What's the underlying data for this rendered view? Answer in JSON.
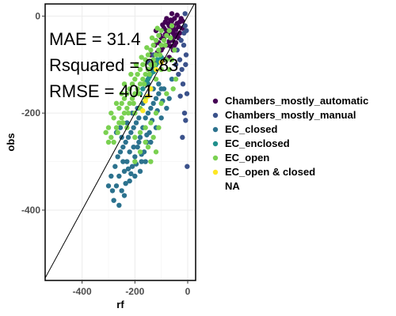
{
  "chart_data": {
    "type": "scatter",
    "title": "",
    "xlabel": "rf",
    "ylabel": "obs",
    "xlim": [
      -540,
      30
    ],
    "ylim": [
      -545,
      25
    ],
    "x_ticks": [
      -400,
      -200,
      0
    ],
    "y_ticks": [
      0,
      -200,
      -400
    ],
    "grid": true,
    "reference_line": "y = x",
    "legend_position": "right",
    "annotations": [
      "MAE = 31.4",
      "Rsquared = 0.83",
      "RMSE = 40.1"
    ],
    "legend": [
      {
        "label": "Chambers_mostly_automatic",
        "color": "#440154"
      },
      {
        "label": "Chambers_mostly_manual",
        "color": "#3B528B"
      },
      {
        "label": "EC_closed",
        "color": "#2C728E"
      },
      {
        "label": "EC_enclosed",
        "color": "#21908C"
      },
      {
        "label": "EC_open",
        "color": "#7AD151"
      },
      {
        "label": "EC_open & closed",
        "color": "#FDE725"
      },
      {
        "label": "NA",
        "color": ""
      }
    ],
    "series": [
      {
        "name": "Chambers_mostly_automatic",
        "color": "#440154",
        "points": [
          [
            -60,
            -10
          ],
          [
            -70,
            -20
          ],
          [
            -50,
            -5
          ],
          [
            -80,
            -30
          ],
          [
            -40,
            -15
          ],
          [
            -90,
            -25
          ],
          [
            -55,
            -35
          ],
          [
            -65,
            -8
          ],
          [
            -75,
            -40
          ],
          [
            -45,
            -28
          ],
          [
            -85,
            -12
          ],
          [
            -100,
            -45
          ],
          [
            -35,
            -22
          ],
          [
            -95,
            -18
          ],
          [
            -60,
            -50
          ],
          [
            -70,
            -32
          ],
          [
            -50,
            -42
          ],
          [
            -110,
            -55
          ],
          [
            -30,
            -12
          ],
          [
            -80,
            -60
          ],
          [
            -120,
            -30
          ],
          [
            -65,
            -62
          ],
          [
            -140,
            -80
          ],
          [
            -40,
            -38
          ],
          [
            -55,
            -20
          ],
          [
            -90,
            -48
          ],
          [
            -25,
            -5
          ],
          [
            -75,
            -15
          ],
          [
            -100,
            -70
          ],
          [
            -45,
            -55
          ],
          [
            -130,
            -95
          ],
          [
            -20,
            -25
          ],
          [
            -85,
            -38
          ],
          [
            -60,
            -28
          ],
          [
            -70,
            -52
          ],
          [
            -35,
            -45
          ],
          [
            -150,
            -110
          ],
          [
            -60,
            5
          ],
          [
            -80,
            -5
          ],
          [
            -50,
            -60
          ],
          [
            -115,
            -75
          ],
          [
            -95,
            -65
          ],
          [
            -40,
            2
          ],
          [
            -105,
            -40
          ],
          [
            -125,
            -60
          ],
          [
            -30,
            -35
          ],
          [
            -55,
            -70
          ],
          [
            -70,
            -85
          ],
          [
            -20,
            -10
          ],
          [
            -88,
            -90
          ]
        ]
      },
      {
        "name": "Chambers_mostly_manual",
        "color": "#3B528B",
        "points": [
          [
            -10,
            5
          ],
          [
            -5,
            -30
          ],
          [
            -15,
            -60
          ],
          [
            -8,
            -100
          ],
          [
            -3,
            -160
          ],
          [
            -20,
            -250
          ],
          [
            -12,
            -200
          ],
          [
            -30,
            -90
          ],
          [
            -25,
            -50
          ],
          [
            -18,
            -140
          ],
          [
            -6,
            -80
          ],
          [
            -40,
            -70
          ],
          [
            -35,
            -120
          ],
          [
            -10,
            -20
          ],
          [
            -22,
            -110
          ],
          [
            -130,
            -80
          ],
          [
            -150,
            -95
          ],
          [
            -45,
            -100
          ],
          [
            -28,
            -165
          ],
          [
            -14,
            -35
          ],
          [
            -8,
            -215
          ],
          [
            -2,
            -310
          ]
        ]
      },
      {
        "name": "EC_closed",
        "color": "#2C728E",
        "points": [
          [
            -280,
            -380
          ],
          [
            -270,
            -350
          ],
          [
            -260,
            -330
          ],
          [
            -250,
            -360
          ],
          [
            -240,
            -320
          ],
          [
            -230,
            -300
          ],
          [
            -220,
            -340
          ],
          [
            -210,
            -310
          ],
          [
            -200,
            -290
          ],
          [
            -190,
            -270
          ],
          [
            -180,
            -250
          ],
          [
            -170,
            -230
          ],
          [
            -160,
            -210
          ],
          [
            -150,
            -200
          ],
          [
            -140,
            -190
          ],
          [
            -130,
            -180
          ],
          [
            -120,
            -170
          ],
          [
            -110,
            -160
          ],
          [
            -100,
            -150
          ],
          [
            -290,
            -330
          ],
          [
            -275,
            -310
          ],
          [
            -265,
            -290
          ],
          [
            -255,
            -280
          ],
          [
            -245,
            -270
          ],
          [
            -235,
            -260
          ],
          [
            -225,
            -250
          ],
          [
            -215,
            -240
          ],
          [
            -205,
            -230
          ],
          [
            -195,
            -220
          ],
          [
            -185,
            -210
          ],
          [
            -175,
            -300
          ],
          [
            -165,
            -280
          ],
          [
            -155,
            -260
          ],
          [
            -145,
            -240
          ],
          [
            -250,
            -250
          ],
          [
            -230,
            -220
          ],
          [
            -210,
            -200
          ],
          [
            -190,
            -190
          ],
          [
            -170,
            -180
          ],
          [
            -270,
            -240
          ],
          [
            -260,
            -390
          ],
          [
            -240,
            -370
          ],
          [
            -220,
            -280
          ],
          [
            -200,
            -330
          ],
          [
            -180,
            -320
          ],
          [
            -160,
            -300
          ],
          [
            -140,
            -260
          ],
          [
            -120,
            -230
          ],
          [
            -100,
            -210
          ],
          [
            -80,
            -190
          ],
          [
            -300,
            -350
          ],
          [
            -285,
            -360
          ],
          [
            -90,
            -150
          ],
          [
            -70,
            -170
          ],
          [
            -60,
            -130
          ],
          [
            -150,
            -140
          ],
          [
            -130,
            -150
          ],
          [
            -110,
            -140
          ],
          [
            -235,
            -345
          ],
          [
            -215,
            -325
          ],
          [
            -195,
            -305
          ],
          [
            -175,
            -285
          ],
          [
            -155,
            -245
          ],
          [
            -135,
            -215
          ],
          [
            -115,
            -195
          ],
          [
            -95,
            -175
          ],
          [
            -255,
            -230
          ],
          [
            -245,
            -300
          ],
          [
            -225,
            -315
          ],
          [
            -205,
            -270
          ],
          [
            -185,
            -260
          ]
        ]
      },
      {
        "name": "EC_enclosed",
        "color": "#21908C",
        "points": [
          [
            -150,
            -130
          ],
          [
            -140,
            -120
          ],
          [
            -130,
            -115
          ],
          [
            -120,
            -100
          ],
          [
            -160,
            -140
          ],
          [
            -170,
            -150
          ],
          [
            -110,
            -95
          ],
          [
            -100,
            -85
          ],
          [
            -145,
            -125
          ],
          [
            -135,
            -110
          ],
          [
            -125,
            -105
          ],
          [
            -155,
            -135
          ],
          [
            -180,
            -160
          ],
          [
            -115,
            -90
          ]
        ]
      },
      {
        "name": "EC_open",
        "color": "#7AD151",
        "points": [
          [
            -300,
            -230
          ],
          [
            -280,
            -210
          ],
          [
            -260,
            -190
          ],
          [
            -240,
            -170
          ],
          [
            -220,
            -150
          ],
          [
            -200,
            -130
          ],
          [
            -180,
            -110
          ],
          [
            -160,
            -90
          ],
          [
            -140,
            -70
          ],
          [
            -120,
            -50
          ],
          [
            -100,
            -30
          ],
          [
            -290,
            -250
          ],
          [
            -270,
            -230
          ],
          [
            -250,
            -210
          ],
          [
            -230,
            -190
          ],
          [
            -210,
            -170
          ],
          [
            -190,
            -150
          ],
          [
            -170,
            -130
          ],
          [
            -150,
            -110
          ],
          [
            -130,
            -90
          ],
          [
            -110,
            -70
          ],
          [
            -90,
            -50
          ],
          [
            -70,
            -30
          ],
          [
            -260,
            -220
          ],
          [
            -240,
            -200
          ],
          [
            -220,
            -180
          ],
          [
            -200,
            -160
          ],
          [
            -180,
            -140
          ],
          [
            -160,
            -120
          ],
          [
            -140,
            -100
          ],
          [
            -120,
            -80
          ],
          [
            -100,
            -60
          ],
          [
            -80,
            -40
          ],
          [
            -60,
            -20
          ],
          [
            -250,
            -180
          ],
          [
            -230,
            -160
          ],
          [
            -210,
            -140
          ],
          [
            -190,
            -120
          ],
          [
            -170,
            -100
          ],
          [
            -150,
            -80
          ],
          [
            -130,
            -60
          ],
          [
            -110,
            -40
          ],
          [
            -280,
            -260
          ],
          [
            -265,
            -240
          ],
          [
            -245,
            -220
          ],
          [
            -225,
            -200
          ],
          [
            -205,
            -180
          ],
          [
            -185,
            -160
          ],
          [
            -165,
            -140
          ],
          [
            -145,
            -120
          ],
          [
            -125,
            -100
          ],
          [
            -105,
            -80
          ],
          [
            -85,
            -60
          ],
          [
            -65,
            -45
          ],
          [
            -200,
            -200
          ],
          [
            -180,
            -190
          ],
          [
            -160,
            -170
          ],
          [
            -140,
            -150
          ],
          [
            -120,
            -130
          ],
          [
            -100,
            -110
          ],
          [
            -80,
            -90
          ],
          [
            -200,
            -250
          ],
          [
            -180,
            -240
          ],
          [
            -160,
            -230
          ],
          [
            -140,
            -220
          ],
          [
            -120,
            -200
          ],
          [
            -100,
            -180
          ],
          [
            -80,
            -160
          ],
          [
            -150,
            -270
          ],
          [
            -130,
            -250
          ],
          [
            -110,
            -230
          ],
          [
            -180,
            -280
          ],
          [
            -160,
            -260
          ],
          [
            -140,
            -300
          ],
          [
            -120,
            -280
          ],
          [
            -200,
            -300
          ],
          [
            -230,
            -230
          ],
          [
            -215,
            -120
          ],
          [
            -195,
            -100
          ],
          [
            -175,
            -85
          ],
          [
            -155,
            -65
          ],
          [
            -135,
            -45
          ],
          [
            -115,
            -25
          ],
          [
            -240,
            -140
          ],
          [
            -300,
            -260
          ],
          [
            -310,
            -240
          ],
          [
            -290,
            -200
          ],
          [
            -270,
            -180
          ],
          [
            -250,
            -160
          ],
          [
            -70,
            -110
          ],
          [
            -60,
            -90
          ],
          [
            -50,
            -70
          ],
          [
            -45,
            -130
          ],
          [
            -55,
            -150
          ]
        ]
      },
      {
        "name": "EC_open & closed",
        "color": "#FDE725",
        "points": [
          [
            -170,
            -195
          ],
          [
            -160,
            -175
          ],
          [
            -150,
            -165
          ],
          [
            -140,
            -150
          ],
          [
            -120,
            -110
          ],
          [
            -100,
            -95
          ]
        ]
      }
    ]
  }
}
